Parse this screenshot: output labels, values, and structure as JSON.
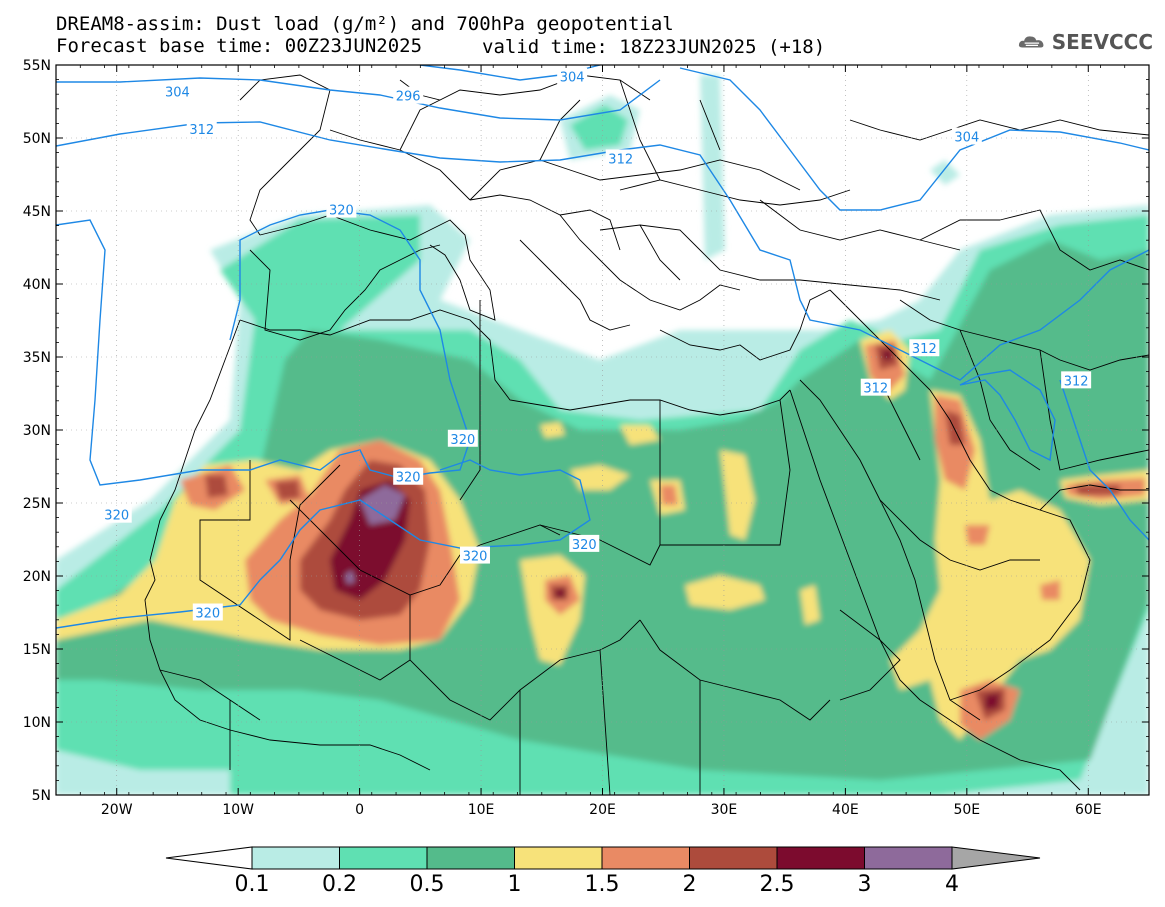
{
  "header": {
    "title_line1": "DREAM8-assim: Dust load (g/m²) and 700hPa geopotential",
    "title_line2": "Forecast base time: 00Z23JUN2025",
    "valid_time": "valid time: 18Z23JUN2025 (+18)"
  },
  "logo": {
    "text": "SEEVCCC",
    "icon": "cloud-logo-icon",
    "color": "#555555"
  },
  "map": {
    "lon_range": [
      -25,
      65
    ],
    "lat_range": [
      5,
      55
    ],
    "lat_ticks": [
      "55N",
      "50N",
      "45N",
      "40N",
      "35N",
      "30N",
      "25N",
      "20N",
      "15N",
      "10N",
      "5N"
    ],
    "lon_ticks": [
      "20W",
      "10W",
      "0",
      "10E",
      "20E",
      "30E",
      "40E",
      "50E",
      "60E"
    ],
    "contour_color": "#1e88e5",
    "contour_labels": [
      {
        "text": "304",
        "lon": -15,
        "lat": 53.2
      },
      {
        "text": "296",
        "lon": 4,
        "lat": 52.9
      },
      {
        "text": "304",
        "lon": 17.5,
        "lat": 54.2
      },
      {
        "text": "312",
        "lon": -13,
        "lat": 50.6
      },
      {
        "text": "312",
        "lon": 21.5,
        "lat": 48.6
      },
      {
        "text": "304",
        "lon": 50,
        "lat": 50.1
      },
      {
        "text": "320",
        "lon": -1.5,
        "lat": 45.1
      },
      {
        "text": "312",
        "lon": 46.5,
        "lat": 35.6
      },
      {
        "text": "312",
        "lon": 42.5,
        "lat": 32.9
      },
      {
        "text": "312",
        "lon": 59,
        "lat": 33.4
      },
      {
        "text": "320",
        "lon": -20,
        "lat": 24.2
      },
      {
        "text": "320",
        "lon": 8.5,
        "lat": 29.4
      },
      {
        "text": "320",
        "lon": 4,
        "lat": 26.8
      },
      {
        "text": "320",
        "lon": 9.5,
        "lat": 21.4
      },
      {
        "text": "320",
        "lon": 18.5,
        "lat": 22.2
      },
      {
        "text": "320",
        "lon": -12.5,
        "lat": 17.5
      }
    ]
  },
  "colorbar": {
    "colors": [
      "#b9ece5",
      "#5fe0b2",
      "#54bb8b",
      "#f7e27a",
      "#e98a64",
      "#ad4b3c",
      "#7c0b2e",
      "#8e6a9b",
      "#a6a6a6"
    ],
    "labels": [
      "0.1",
      "0.2",
      "0.5",
      "1",
      "1.5",
      "2",
      "2.5",
      "3",
      "4"
    ]
  }
}
